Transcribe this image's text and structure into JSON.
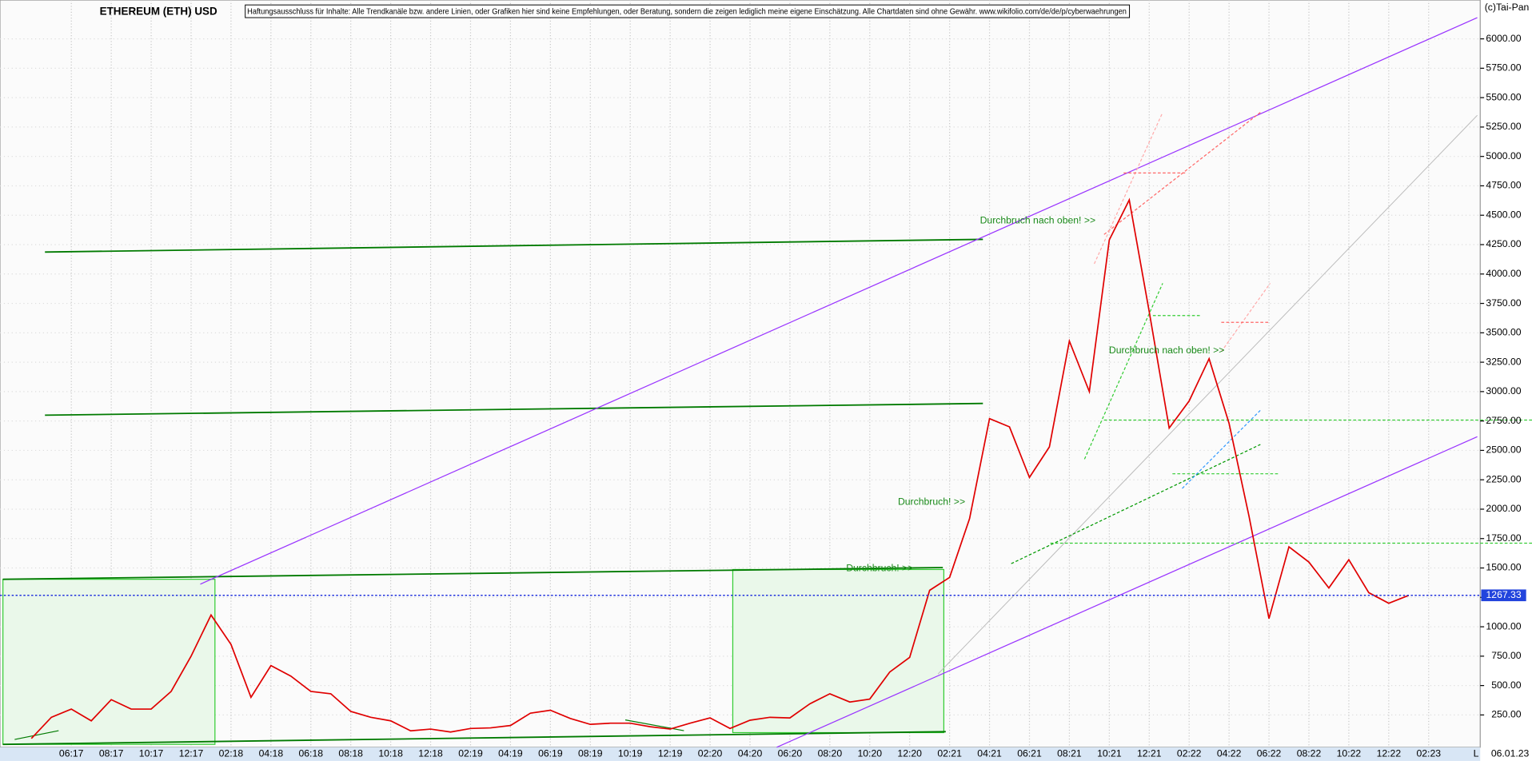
{
  "chart_data": {
    "type": "line",
    "title": "ETHEREUM (ETH) USD",
    "disclaimer": "Haftungsausschluss für Inhalte: Alle Trendkanäle bzw. andere Linien, oder Grafiken hier sind keine Empfehlungen, oder Beratung, sondern die zeigen lediglich meine eigene Einschätzung. Alle Chartdaten sind ohne Gewähr. www.wikifolio.com/de/de/p/cyberwaehrungen",
    "copyright": "(c)Tai-Pan",
    "date_label": "06.01.23",
    "scale_label": "L",
    "annotations": [
      "Durchbruch nach oben! >>",
      "Durchbruch nach oben! >>",
      "Durchbruch! >>",
      "Durchbruch! >>"
    ],
    "last_price": 1267.33,
    "color": "#e00000",
    "x": [
      "04:17",
      "05:17",
      "06:17",
      "07:17",
      "08:17",
      "09:17",
      "10:17",
      "11:17",
      "12:17",
      "01:18",
      "02:18",
      "03:18",
      "04:18",
      "05:18",
      "06:18",
      "07:18",
      "08:18",
      "09:18",
      "10:18",
      "11:18",
      "12:18",
      "01:19",
      "02:19",
      "03:19",
      "04:19",
      "05:19",
      "06:19",
      "07:19",
      "08:19",
      "09:19",
      "10:19",
      "11:19",
      "12:19",
      "01:20",
      "02:20",
      "03:20",
      "04:20",
      "05:20",
      "06:20",
      "07:20",
      "08:20",
      "09:20",
      "10:20",
      "11:20",
      "12:20",
      "01:21",
      "02:21",
      "03:21",
      "04:21",
      "05:21",
      "06:21",
      "07:21",
      "08:21",
      "09:21",
      "10:21",
      "11:21",
      "12:21",
      "01:22",
      "02:22",
      "03:22",
      "04:22",
      "05:22",
      "06:22",
      "07:22",
      "08:22",
      "09:22",
      "10:22",
      "11:22",
      "12:22",
      "01:23"
    ],
    "values": [
      50,
      230,
      300,
      200,
      380,
      300,
      300,
      450,
      750,
      1100,
      850,
      400,
      670,
      580,
      450,
      430,
      280,
      230,
      200,
      115,
      130,
      105,
      135,
      140,
      160,
      265,
      290,
      220,
      170,
      180,
      180,
      150,
      130,
      180,
      225,
      135,
      205,
      230,
      225,
      345,
      430,
      360,
      385,
      615,
      740,
      1310,
      1420,
      1920,
      2770,
      2700,
      2270,
      2530,
      3430,
      3000,
      4290,
      4630,
      3680,
      2690,
      2920,
      3280,
      2730,
      1940,
      1070,
      1680,
      1550,
      1330,
      1570,
      1290,
      1200,
      1267
    ],
    "xticks": [
      "06:17",
      "08:17",
      "10:17",
      "12:17",
      "02:18",
      "04:18",
      "06:18",
      "08:18",
      "10:18",
      "12:18",
      "02:19",
      "04:19",
      "06:19",
      "08:19",
      "10:19",
      "12:19",
      "02:20",
      "04:20",
      "06:20",
      "08:20",
      "10:20",
      "12:20",
      "02:21",
      "04:21",
      "06:21",
      "08:21",
      "10:21",
      "12:21",
      "02:22",
      "04:22",
      "06:22",
      "08:22",
      "10:22",
      "12:22",
      "02:23"
    ],
    "ylim": [
      0,
      6330
    ],
    "yticks": [
      {
        "value": 250,
        "label": "250.00"
      },
      {
        "value": 500,
        "label": "500.00"
      },
      {
        "value": 750,
        "label": "750.00"
      },
      {
        "value": 1000,
        "label": "1000.00"
      },
      {
        "value": 1250,
        "label": "1250.00"
      },
      {
        "value": 1500,
        "label": "1500.00"
      },
      {
        "value": 1750,
        "label": "1750.00"
      },
      {
        "value": 2000,
        "label": "2000.00"
      },
      {
        "value": 2250,
        "label": "2250.00"
      },
      {
        "value": 2500,
        "label": "2500.00"
      },
      {
        "value": 2750,
        "label": "2750.00"
      },
      {
        "value": 3000,
        "label": "3000.00"
      },
      {
        "value": 3250,
        "label": "3250.00"
      },
      {
        "value": 3500,
        "label": "3500.00"
      },
      {
        "value": 3750,
        "label": "3750.00"
      },
      {
        "value": 4000,
        "label": "4000.00"
      },
      {
        "value": 4250,
        "label": "4250.00"
      },
      {
        "value": 4500,
        "label": "4500.00"
      },
      {
        "value": 4750,
        "label": "4750.00"
      },
      {
        "value": 5000,
        "label": "5000.00"
      },
      {
        "value": 5250,
        "label": "5250.00"
      },
      {
        "value": 5500,
        "label": "5500.00"
      },
      {
        "value": 5750,
        "label": "5750.00"
      },
      {
        "value": 6000,
        "label": "6000.00"
      }
    ],
    "grid": true
  }
}
